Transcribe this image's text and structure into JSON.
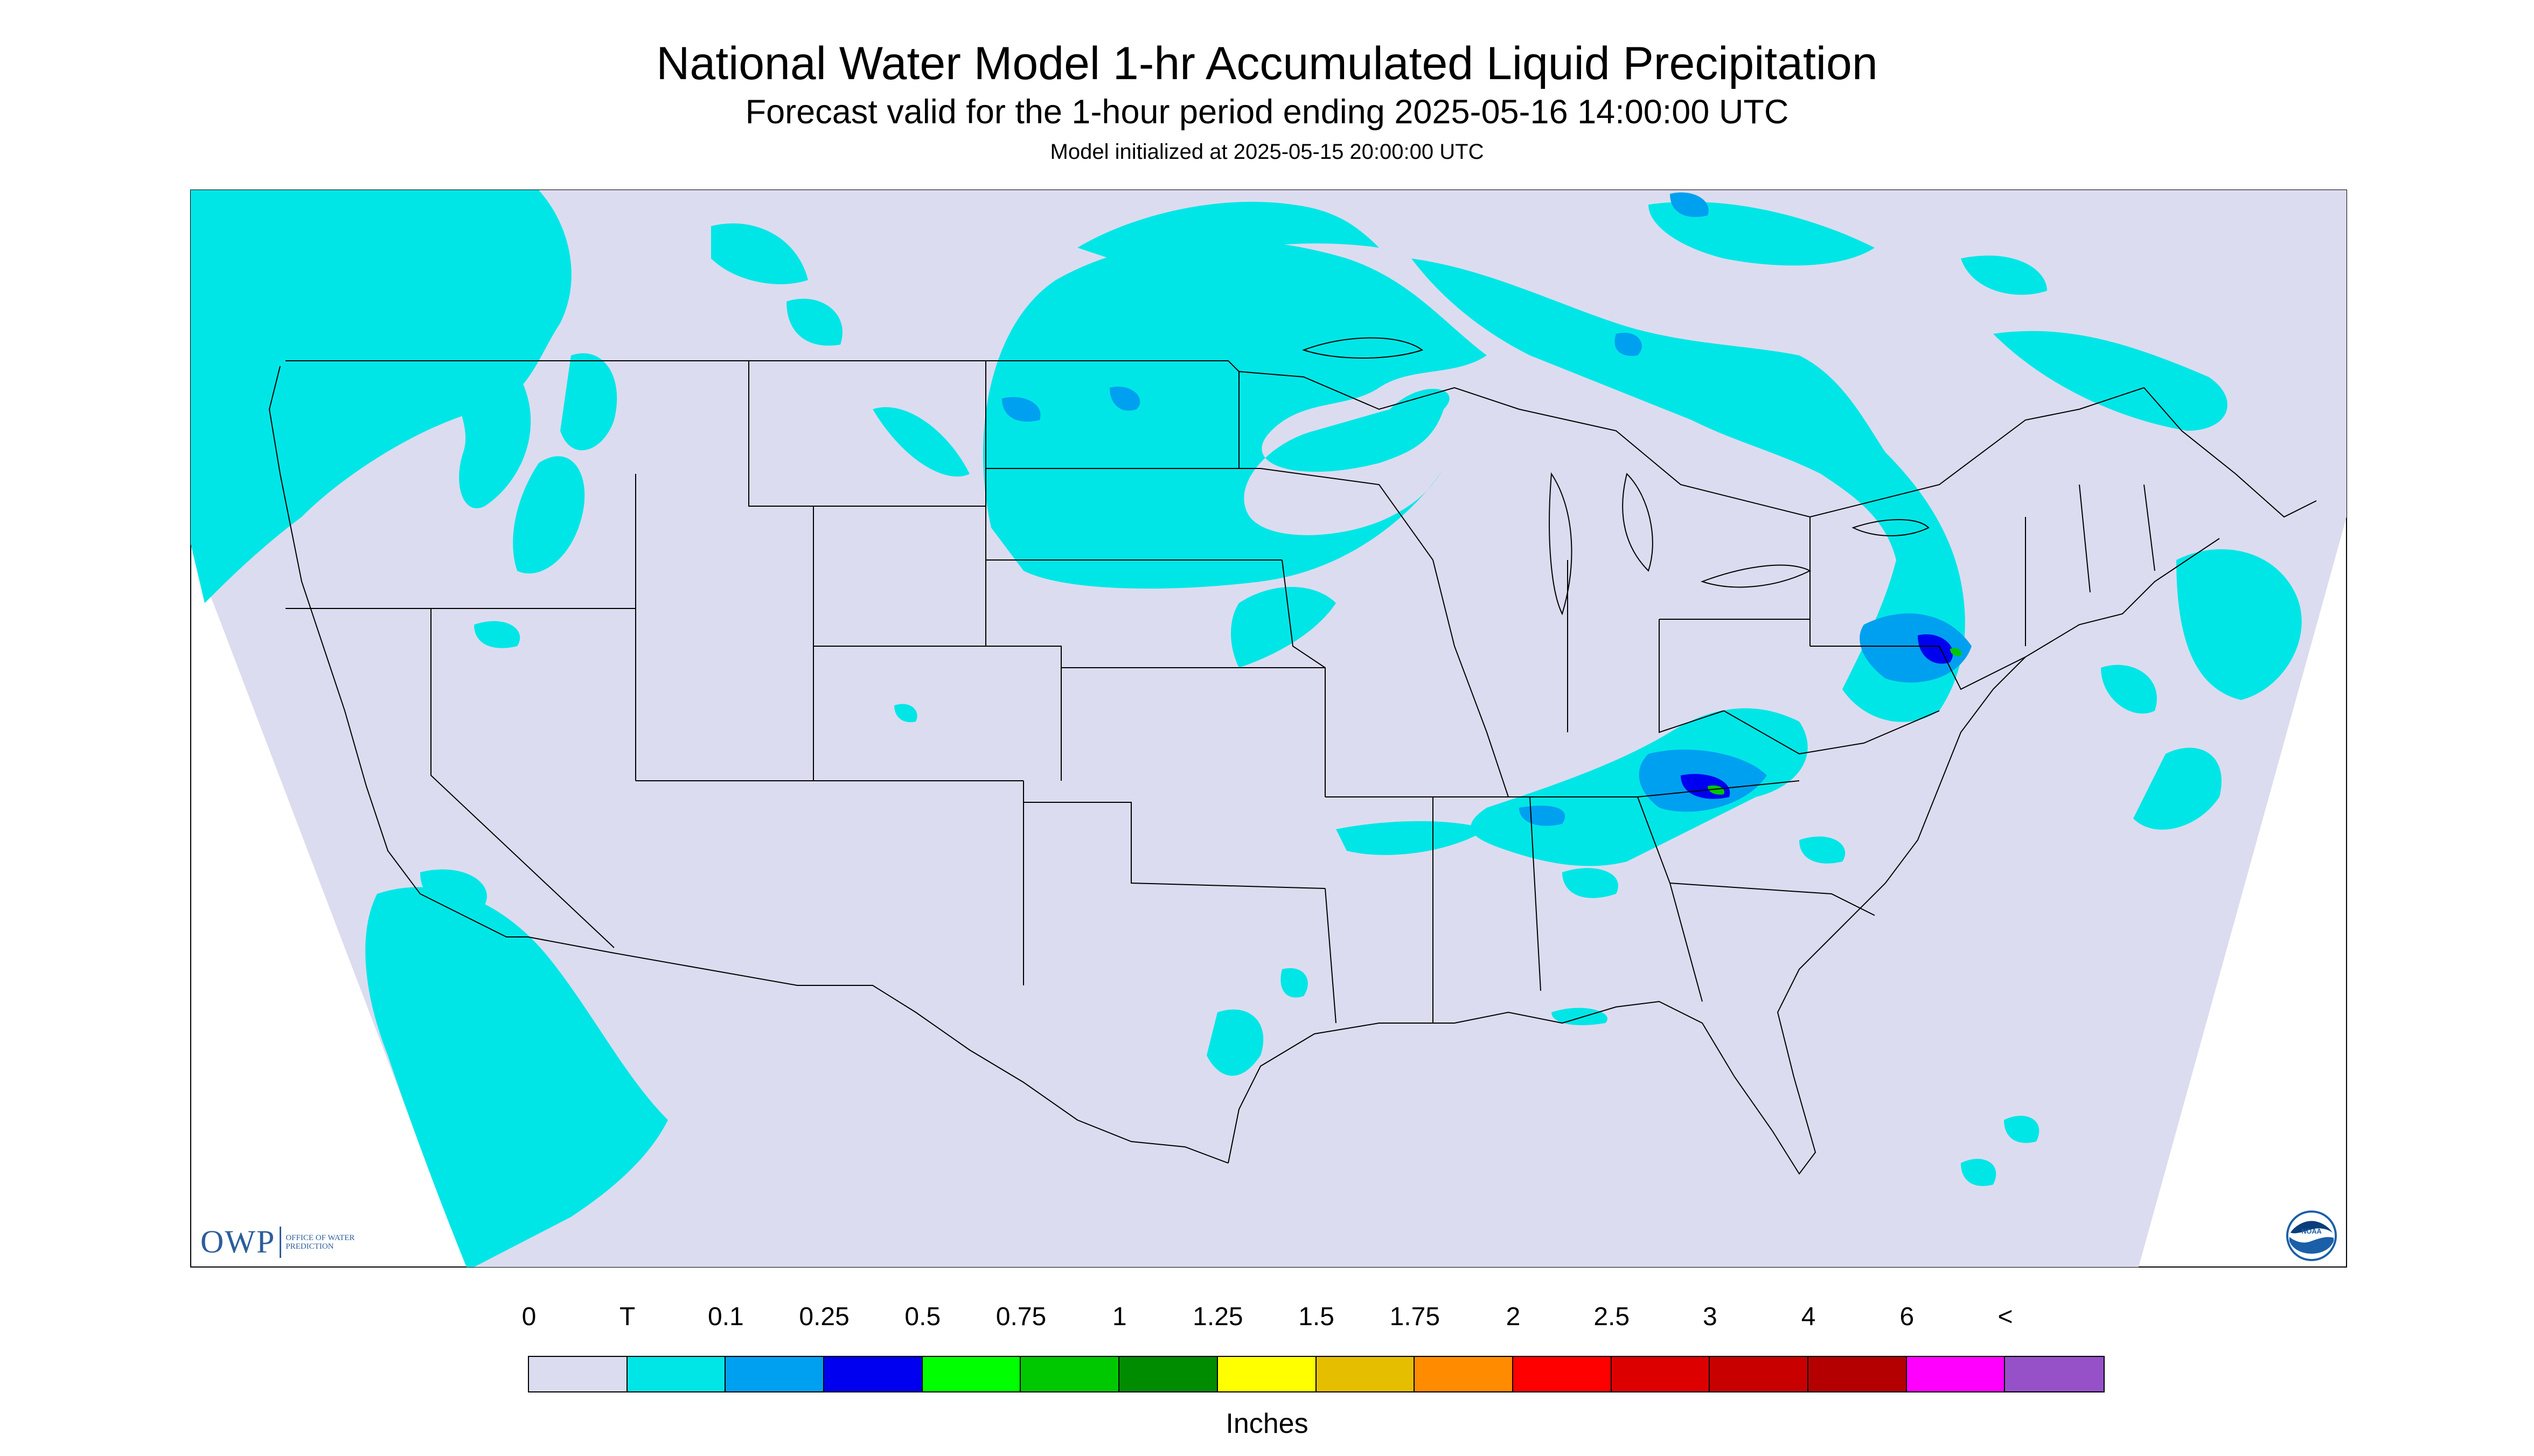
{
  "header": {
    "title": "National Water Model 1-hr Accumulated Liquid Precipitation",
    "subtitle": "Forecast valid for the 1-hour period ending 2025-05-16 14:00:00 UTC",
    "init_line": "Model initialized at 2025-05-15 20:00:00 UTC"
  },
  "logos": {
    "owp_mark": "OWP",
    "owp_text": "OFFICE OF WATER PREDICTION",
    "noaa_text": "NOAA"
  },
  "legend": {
    "tick_labels": [
      "0",
      "T",
      "0.1",
      "0.25",
      "0.5",
      "0.75",
      "1",
      "1.25",
      "1.5",
      "1.75",
      "2",
      "2.5",
      "3",
      "4",
      "6",
      "<"
    ],
    "colors": [
      "#dcdcf0",
      "#00e6e6",
      "#00a0f0",
      "#0000f0",
      "#00ff00",
      "#00c800",
      "#008c00",
      "#ffff00",
      "#e6be00",
      "#ff8c00",
      "#ff0000",
      "#dc0000",
      "#c80000",
      "#b40000",
      "#ff00ff",
      "#9650c8"
    ],
    "units": "Inches"
  },
  "map": {
    "background_color": "#dcdcf0",
    "outside_color": "#ffffff",
    "precip_light_color": "#00e6e6",
    "precip_medium_color": "#00a0f0",
    "precip_heavy_color": "#0000f0",
    "precip_peak_color": "#00c800",
    "boundary_color": "#000000"
  }
}
